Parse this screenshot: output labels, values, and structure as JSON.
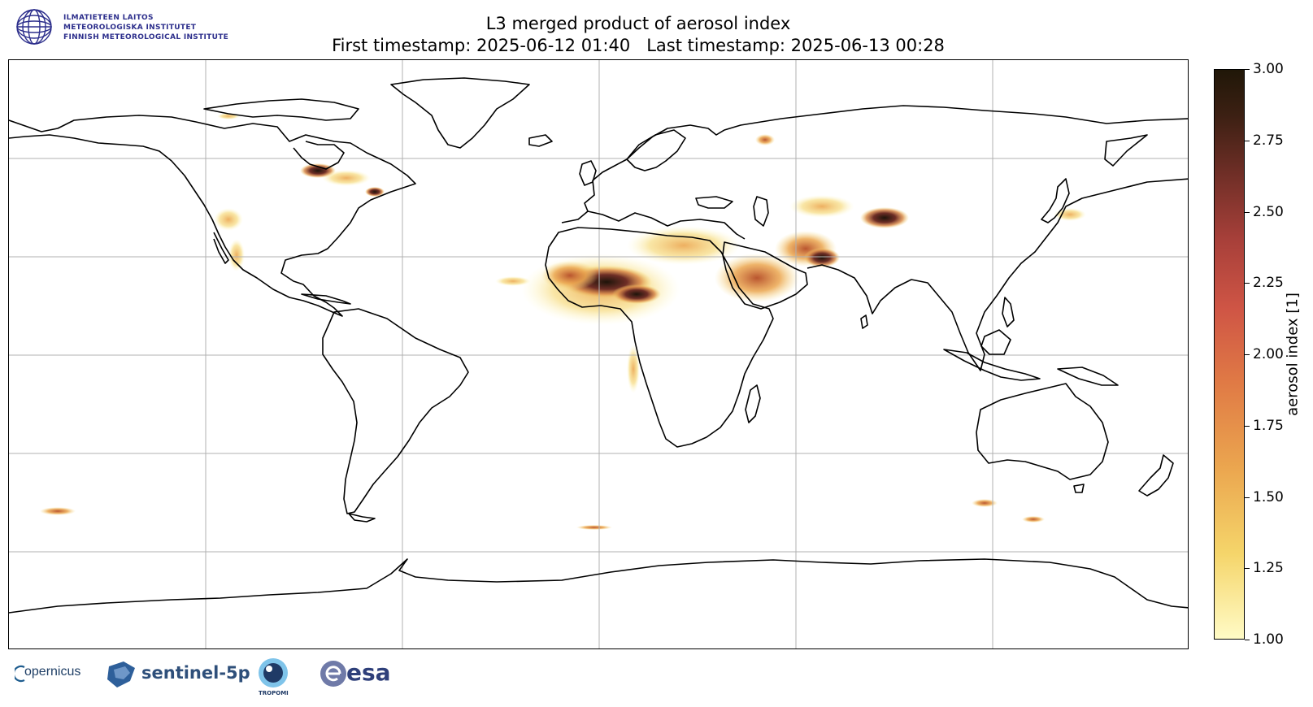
{
  "header": {
    "institute_lines": [
      "ILMATIETEEN LAITOS",
      "METEOROLOGISKA INSTITUTET",
      "FINNISH METEOROLOGICAL INSTITUTE"
    ],
    "title": "L3 merged product of aerosol index",
    "subtitle": "First timestamp: 2025-06-12 01:40   Last timestamp: 2025-06-13 00:28"
  },
  "colorbar": {
    "label": "aerosol index [1]",
    "ticks": [
      "3.00",
      "2.75",
      "2.50",
      "2.25",
      "2.00",
      "1.75",
      "1.50",
      "1.25",
      "1.00"
    ],
    "range": [
      1.0,
      3.0
    ],
    "colors": {
      "low": "#fffbc6",
      "mid": "#e07a45",
      "high": "#201708"
    }
  },
  "map": {
    "projection": "plate carree",
    "gridlines": true,
    "grid_color": "#b0b0b0",
    "coastline_color": "#000000"
  },
  "footer": {
    "logos": [
      {
        "icon": "copernicus-logo",
        "text": "opernicus"
      },
      {
        "icon": "sentinel-satellite-icon",
        "text": "sentinel-5p"
      },
      {
        "icon": "tropomi-eye-icon",
        "text": "TROPOMI"
      },
      {
        "icon": "esa-logo",
        "text": "esa"
      }
    ]
  }
}
